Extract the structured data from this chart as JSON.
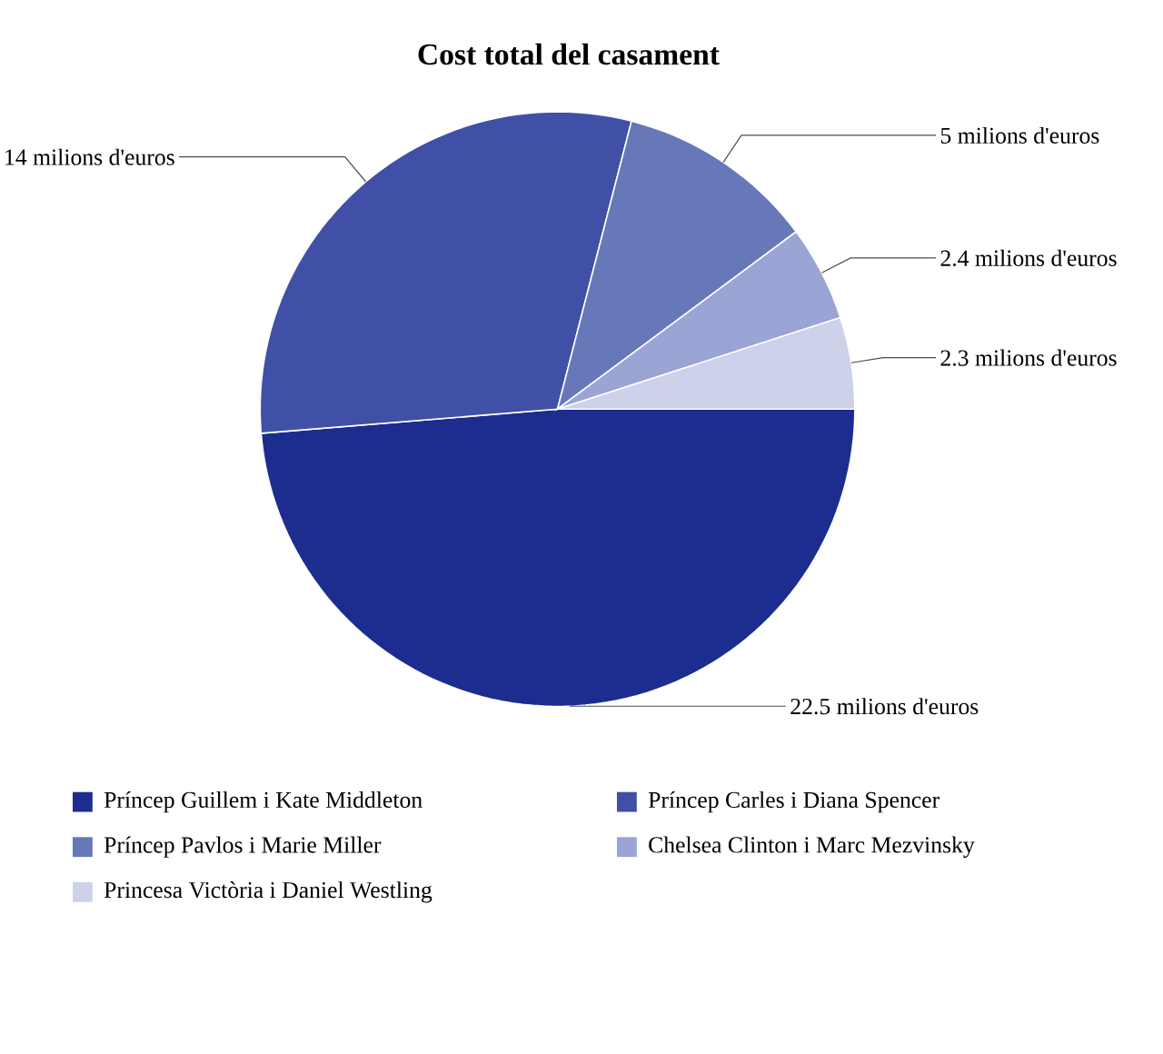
{
  "chart_data": {
    "type": "pie",
    "title": "Cost total del casament",
    "categories": [
      "Príncep Guillem i Kate Middleton",
      "Príncep Carles i Diana Spencer",
      "Príncep Pavlos i Marie Miller",
      "Chelsea Clinton i Marc Mezvinsky",
      "Princesa Victòria i Daniel Westling"
    ],
    "values": [
      22.5,
      14,
      5,
      2.4,
      2.3
    ],
    "value_labels": [
      "22.5 milions d'euros",
      "14 milions d'euros",
      "5 milions d'euros",
      "2.4 milions d'euros",
      "2.3 milions d'euros"
    ],
    "colors": [
      "#1c2d8f",
      "#4050a6",
      "#6778b9",
      "#9aa4d5",
      "#cdd1ea"
    ],
    "legend": "bottom"
  }
}
